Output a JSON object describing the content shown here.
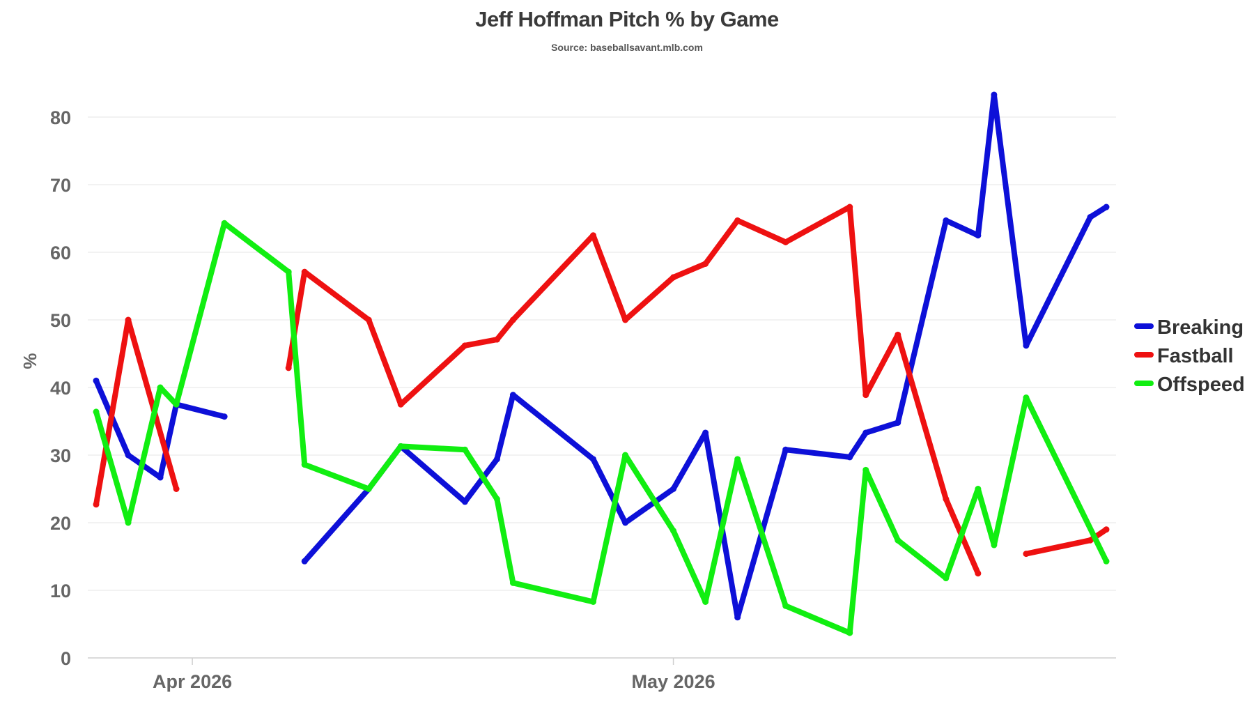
{
  "chart_data": {
    "type": "line",
    "title": "Jeff Hoffman Pitch % by Game",
    "subtitle": "Source: baseballsavant.mlb.com",
    "xlabel": "",
    "ylabel": "%",
    "ylim": [
      0,
      85
    ],
    "yticks": [
      0,
      10,
      20,
      30,
      40,
      50,
      60,
      70,
      80
    ],
    "xlim": [
      "2026-03-26",
      "2026-05-28"
    ],
    "xticks": [
      {
        "date": "2026-04-01",
        "label": "Apr 2026"
      },
      {
        "date": "2026-05-01",
        "label": "May 2026"
      }
    ],
    "grid": "horizontal",
    "legend_position": "right",
    "series": [
      {
        "name": "Breaking",
        "color": "#0d10d8",
        "points": [
          [
            "2026-03-26",
            41.0
          ],
          [
            "2026-03-28",
            30.0
          ],
          [
            "2026-03-30",
            26.7
          ],
          [
            "2026-03-31",
            37.5
          ],
          [
            "2026-04-03",
            35.7
          ],
          [
            "2026-04-03",
            null
          ],
          [
            "2026-04-08",
            14.3
          ],
          [
            "2026-04-12",
            25.0
          ],
          [
            "2026-04-14",
            31.3
          ],
          [
            "2026-04-18",
            23.1
          ],
          [
            "2026-04-20",
            29.4
          ],
          [
            "2026-04-21",
            38.9
          ],
          [
            "2026-04-26",
            29.4
          ],
          [
            "2026-04-28",
            20.0
          ],
          [
            "2026-05-01",
            25.0
          ],
          [
            "2026-05-03",
            33.3
          ],
          [
            "2026-05-05",
            6.0
          ],
          [
            "2026-05-08",
            30.8
          ],
          [
            "2026-05-12",
            29.7
          ],
          [
            "2026-05-13",
            33.3
          ],
          [
            "2026-05-15",
            34.8
          ],
          [
            "2026-05-18",
            64.7
          ],
          [
            "2026-05-20",
            62.5
          ],
          [
            "2026-05-21",
            83.3
          ],
          [
            "2026-05-23",
            46.2
          ],
          [
            "2026-05-27",
            65.2
          ],
          [
            "2026-05-28",
            66.7
          ]
        ]
      },
      {
        "name": "Fastball",
        "color": "#ee1111",
        "points": [
          [
            "2026-03-26",
            22.7
          ],
          [
            "2026-03-28",
            50.0
          ],
          [
            "2026-03-31",
            25.0
          ],
          [
            "2026-03-31",
            null
          ],
          [
            "2026-04-07",
            42.9
          ],
          [
            "2026-04-08",
            57.1
          ],
          [
            "2026-04-12",
            50.0
          ],
          [
            "2026-04-14",
            37.5
          ],
          [
            "2026-04-18",
            46.2
          ],
          [
            "2026-04-20",
            47.1
          ],
          [
            "2026-04-21",
            50.0
          ],
          [
            "2026-04-26",
            62.5
          ],
          [
            "2026-04-28",
            50.0
          ],
          [
            "2026-05-01",
            56.3
          ],
          [
            "2026-05-03",
            58.3
          ],
          [
            "2026-05-05",
            64.7
          ],
          [
            "2026-05-08",
            61.5
          ],
          [
            "2026-05-12",
            66.7
          ],
          [
            "2026-05-13",
            38.9
          ],
          [
            "2026-05-15",
            47.8
          ],
          [
            "2026-05-18",
            23.5
          ],
          [
            "2026-05-20",
            12.5
          ],
          [
            "2026-05-20",
            null
          ],
          [
            "2026-05-23",
            15.4
          ],
          [
            "2026-05-27",
            17.4
          ],
          [
            "2026-05-28",
            19.0
          ]
        ]
      },
      {
        "name": "Offspeed",
        "color": "#11ee11",
        "points": [
          [
            "2026-03-26",
            36.4
          ],
          [
            "2026-03-28",
            20.0
          ],
          [
            "2026-03-30",
            40.0
          ],
          [
            "2026-03-31",
            37.5
          ],
          [
            "2026-04-03",
            64.3
          ],
          [
            "2026-04-07",
            57.1
          ],
          [
            "2026-04-08",
            28.6
          ],
          [
            "2026-04-12",
            25.0
          ],
          [
            "2026-04-14",
            31.3
          ],
          [
            "2026-04-18",
            30.8
          ],
          [
            "2026-04-20",
            23.5
          ],
          [
            "2026-04-21",
            11.1
          ],
          [
            "2026-04-26",
            8.3
          ],
          [
            "2026-04-28",
            30.0
          ],
          [
            "2026-05-01",
            18.8
          ],
          [
            "2026-05-03",
            8.3
          ],
          [
            "2026-05-05",
            29.4
          ],
          [
            "2026-05-08",
            7.7
          ],
          [
            "2026-05-12",
            3.7
          ],
          [
            "2026-05-13",
            27.8
          ],
          [
            "2026-05-15",
            17.4
          ],
          [
            "2026-05-18",
            11.8
          ],
          [
            "2026-05-20",
            25.0
          ],
          [
            "2026-05-21",
            16.7
          ],
          [
            "2026-05-23",
            38.5
          ],
          [
            "2026-05-28",
            14.3
          ]
        ]
      }
    ]
  }
}
